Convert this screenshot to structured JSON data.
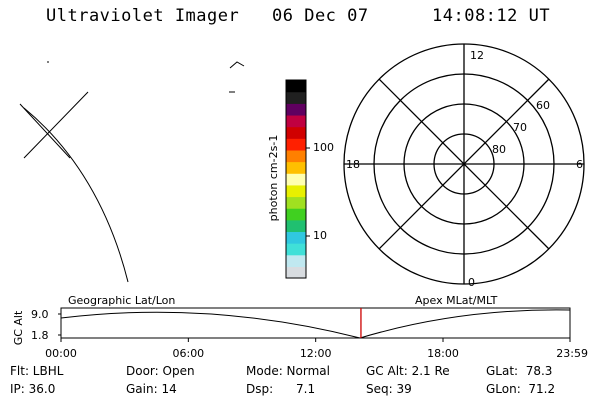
{
  "header": {
    "title": "Ultraviolet Imager",
    "date": "06 Dec 07",
    "time": "14:08:12 UT"
  },
  "colorbar": {
    "label": "photon cm-2s-1",
    "ticks": [
      "100",
      "10"
    ],
    "colors": [
      "#d8dce0",
      "#c0e8f0",
      "#40e0d8",
      "#30c8e0",
      "#20c070",
      "#40d020",
      "#a0e020",
      "#e8f000",
      "#ffffb0",
      "#ffc000",
      "#ff8000",
      "#ff2000",
      "#d00000",
      "#c00040",
      "#600060",
      "#202020",
      "#000000"
    ]
  },
  "polar_plot": {
    "lat_labels": [
      "60",
      "70",
      "80"
    ],
    "mlt_labels": [
      "12",
      "18",
      "6",
      "0"
    ]
  },
  "altitude_strip": {
    "y_label": "GC Alt",
    "y_ticks": [
      "9.0",
      "1.8"
    ],
    "left_label": "Geographic Lat/Lon",
    "right_label": "Apex MLat/MLT",
    "x_ticks": [
      "00:00",
      "06:00",
      "12:00",
      "18:00",
      "23:59"
    ],
    "marker_time": "14:08",
    "marker_color": "#cc0000"
  },
  "footer": {
    "row1": {
      "flt": "Flt: LBHL",
      "door": "Door: Open",
      "mode": "Mode: Normal",
      "gcalt": "GC Alt: 2.1 Re",
      "glat": "GLat:  78.3"
    },
    "row2": {
      "ip": "IP: 36.0",
      "gain": "Gain: 14",
      "dsp": "Dsp:      7.1",
      "seq": "Seq: 39",
      "glon": "GLon:  71.2"
    }
  }
}
